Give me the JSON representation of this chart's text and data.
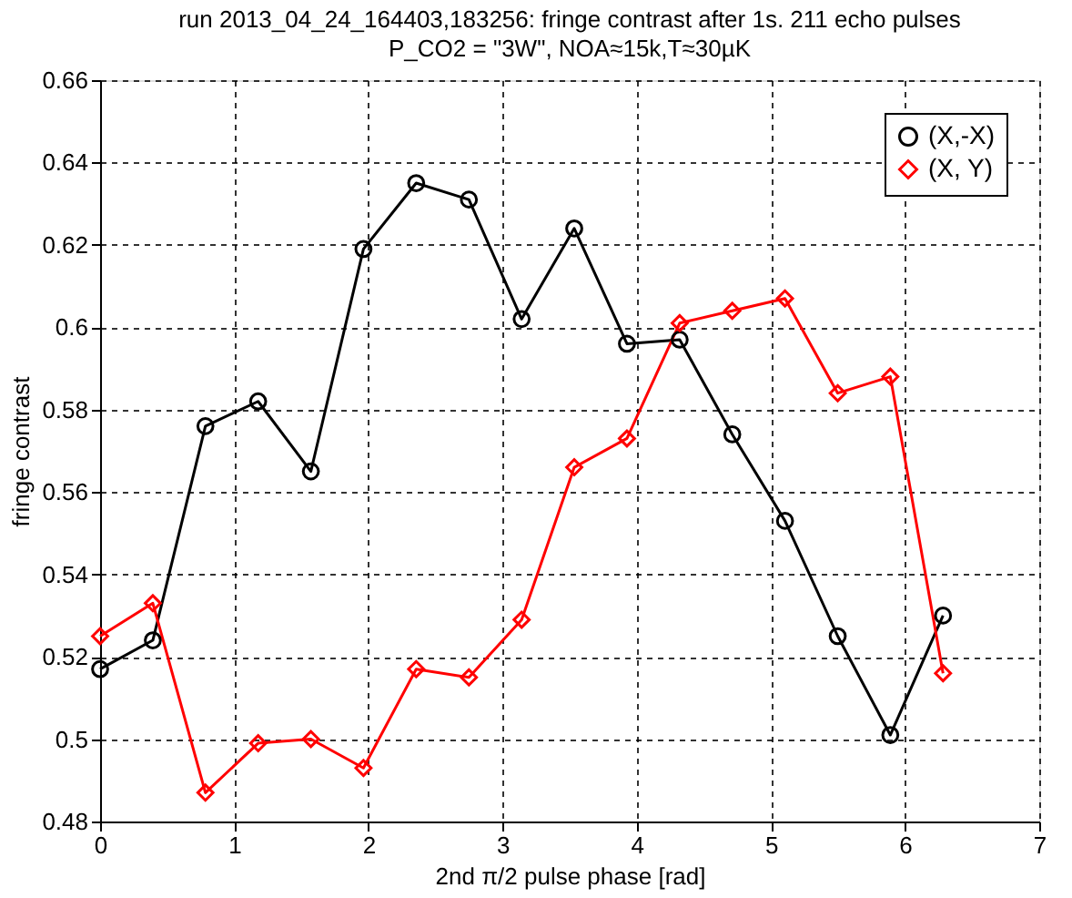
{
  "chart_data": {
    "type": "line",
    "title": "run 2013_04_24_164403,183256: fringe contrast after 1s. 211 echo pulses",
    "subtitle": "P_CO2 = \"3W\", NOA≈15k,T≈30µK",
    "xlabel": "2nd π/2 pulse phase [rad]",
    "ylabel": "fringe contrast",
    "x": [
      0,
      0.393,
      0.785,
      1.178,
      1.571,
      1.963,
      2.356,
      2.749,
      3.142,
      3.534,
      3.927,
      4.32,
      4.712,
      5.105,
      5.498,
      5.89,
      6.283
    ],
    "series": [
      {
        "name": "(X,-X)",
        "color": "#000000",
        "marker": "circle",
        "values": [
          0.517,
          0.524,
          0.576,
          0.582,
          0.565,
          0.619,
          0.635,
          0.631,
          0.602,
          0.624,
          0.596,
          0.597,
          0.574,
          0.553,
          0.525,
          0.501,
          0.53
        ]
      },
      {
        "name": "(X, Y)",
        "color": "#ff0000",
        "marker": "diamond",
        "values": [
          0.525,
          0.533,
          0.487,
          0.499,
          0.5,
          0.493,
          0.517,
          0.515,
          0.529,
          0.566,
          0.573,
          0.601,
          0.604,
          0.607,
          0.584,
          0.588,
          0.516
        ]
      }
    ],
    "xlim": [
      0,
      7
    ],
    "xticks": [
      0,
      1,
      2,
      3,
      4,
      5,
      6,
      7
    ],
    "ylim": [
      0.48,
      0.66
    ],
    "yticks": [
      0.48,
      0.5,
      0.52,
      0.54,
      0.56,
      0.58,
      0.6,
      0.62,
      0.64,
      0.66
    ],
    "grid": true,
    "legend": "top right",
    "line_style": "solid"
  }
}
